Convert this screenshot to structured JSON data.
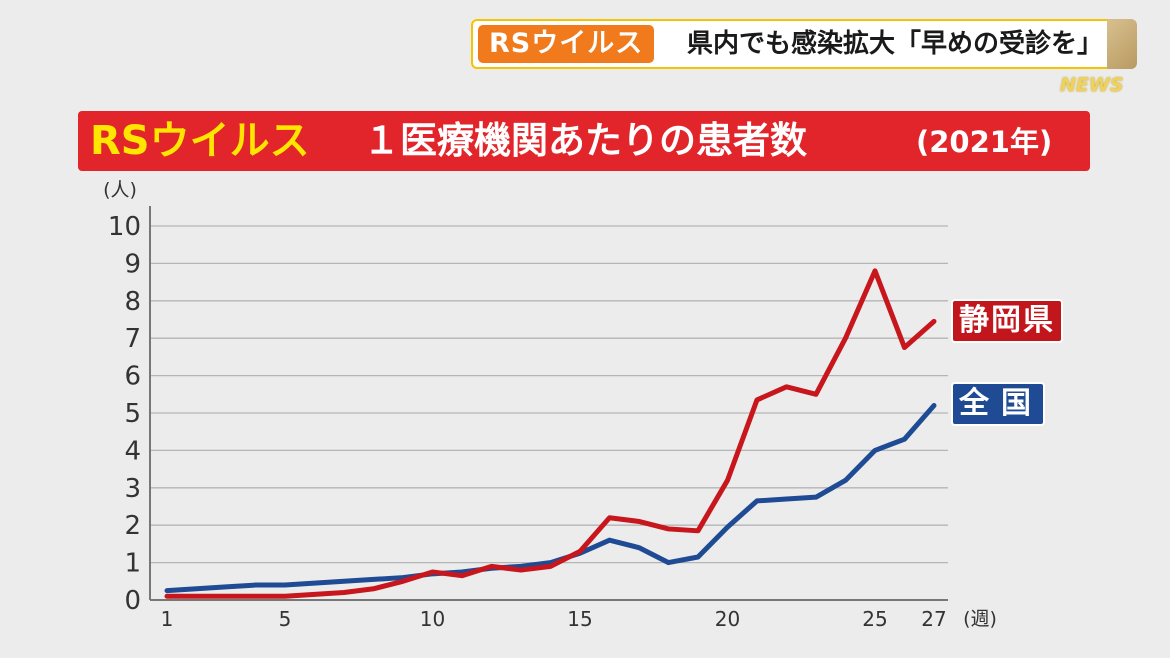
{
  "ticker": {
    "tag": "RSウイルス",
    "headline": "県内でも感染拡大「早めの受診を」",
    "brand": "NEWS"
  },
  "title": {
    "main_yellow": "RSウイルス",
    "main_white": "１医療機関あたりの患者数",
    "year": "(2021年)"
  },
  "colors": {
    "shizuoka": "#c8161d",
    "national": "#1f4b94",
    "banner": "#e1252a",
    "ticker_tag": "#f07a1c"
  },
  "chart_data": {
    "type": "line",
    "ylabel": "(人)",
    "xlabel": "(週)",
    "ylim": [
      0,
      10
    ],
    "xlim": [
      1,
      27
    ],
    "y_ticks": [
      "0",
      "1",
      "2",
      "3",
      "4",
      "5",
      "6",
      "7",
      "8",
      "9",
      "10"
    ],
    "x_ticks": [
      "1",
      "5",
      "10",
      "15",
      "20",
      "25",
      "27"
    ],
    "grid": true,
    "x": [
      1,
      2,
      3,
      4,
      5,
      6,
      7,
      8,
      9,
      10,
      11,
      12,
      13,
      14,
      15,
      16,
      17,
      18,
      19,
      20,
      21,
      22,
      23,
      24,
      25,
      26,
      27
    ],
    "series": [
      {
        "name": "静岡県",
        "color": "#c8161d",
        "values": [
          0.1,
          0.1,
          0.1,
          0.1,
          0.1,
          0.15,
          0.2,
          0.3,
          0.5,
          0.75,
          0.65,
          0.9,
          0.8,
          0.9,
          1.3,
          2.2,
          2.1,
          1.9,
          1.85,
          3.2,
          5.35,
          5.7,
          5.5,
          7.0,
          8.8,
          6.75,
          7.45
        ]
      },
      {
        "name": "全国",
        "color": "#1f4b94",
        "values": [
          0.25,
          0.3,
          0.35,
          0.4,
          0.4,
          0.45,
          0.5,
          0.55,
          0.6,
          0.7,
          0.75,
          0.85,
          0.9,
          1.0,
          1.25,
          1.6,
          1.4,
          1.0,
          1.15,
          1.95,
          2.65,
          2.7,
          2.75,
          3.2,
          4.0,
          4.3,
          5.2
        ]
      }
    ]
  }
}
